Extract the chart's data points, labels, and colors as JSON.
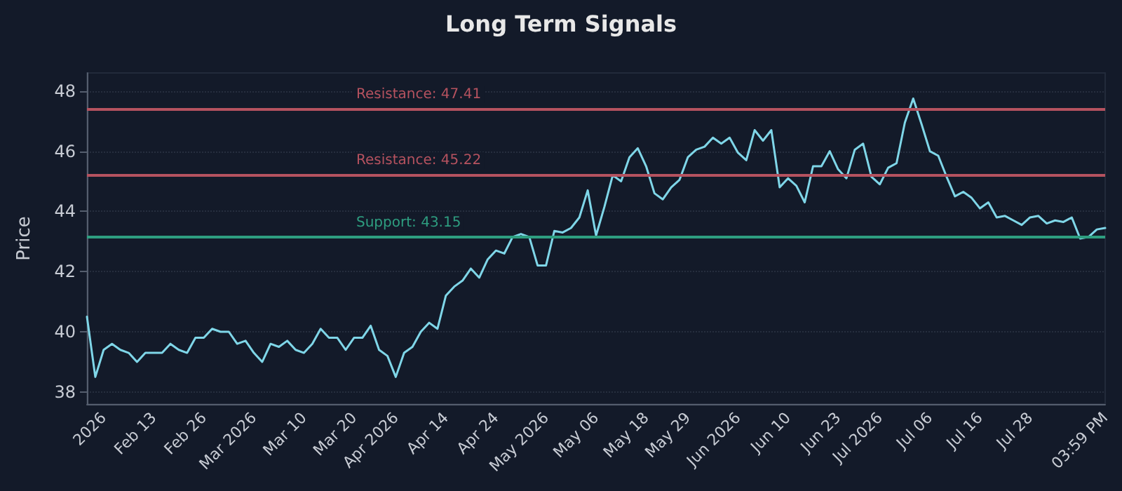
{
  "chart_data": {
    "type": "line",
    "title": "Long Term Signals",
    "ylabel": "Price",
    "categories": [
      null,
      null,
      "2026",
      null,
      null,
      null,
      null,
      null,
      "Feb 13",
      null,
      null,
      null,
      null,
      null,
      "Feb 26",
      null,
      null,
      null,
      null,
      null,
      "Mar 2026",
      null,
      null,
      null,
      null,
      null,
      "Mar 10",
      null,
      null,
      null,
      null,
      null,
      "Mar 20",
      null,
      null,
      null,
      null,
      "Apr 2026",
      null,
      null,
      null,
      null,
      null,
      "Apr 14",
      null,
      null,
      null,
      null,
      null,
      "Apr 24",
      null,
      null,
      null,
      null,
      null,
      "May 2026",
      null,
      null,
      null,
      null,
      null,
      "May 06",
      null,
      null,
      null,
      null,
      null,
      "May 18",
      null,
      null,
      null,
      null,
      "May 29",
      null,
      null,
      null,
      null,
      null,
      "Jun 2026",
      null,
      null,
      null,
      null,
      null,
      "Jun 10",
      null,
      null,
      null,
      null,
      null,
      "Jun 23",
      null,
      null,
      null,
      null,
      "Jul 2026",
      null,
      null,
      null,
      null,
      null,
      "Jul 06",
      null,
      null,
      null,
      null,
      null,
      "Jul 16",
      null,
      null,
      null,
      null,
      null,
      "Jul 28",
      null,
      null,
      null,
      null,
      null,
      null,
      null,
      null,
      "03:59 PM"
    ],
    "series": [
      {
        "color": "#7fd6e8",
        "values": [
          40.5,
          38.5,
          39.4,
          39.6,
          39.4,
          39.3,
          39.0,
          39.3,
          39.3,
          39.3,
          39.6,
          39.4,
          39.3,
          39.8,
          39.8,
          40.1,
          40.0,
          40.0,
          39.6,
          39.7,
          39.3,
          39.0,
          39.6,
          39.5,
          39.7,
          39.4,
          39.3,
          39.6,
          40.1,
          39.8,
          39.8,
          39.4,
          39.8,
          39.8,
          40.2,
          39.4,
          39.2,
          38.5,
          39.3,
          39.5,
          40.0,
          40.3,
          40.1,
          41.2,
          41.5,
          41.7,
          42.1,
          41.8,
          42.4,
          42.7,
          42.6,
          43.15,
          43.25,
          43.15,
          42.2,
          42.2,
          43.35,
          43.3,
          43.45,
          43.8,
          44.7,
          43.2,
          44.15,
          45.2,
          45.0,
          45.8,
          46.1,
          45.5,
          44.6,
          44.4,
          44.8,
          45.05,
          45.8,
          46.05,
          46.15,
          46.45,
          46.25,
          46.45,
          45.95,
          45.7,
          46.7,
          46.35,
          46.7,
          44.8,
          45.1,
          44.85,
          44.3,
          45.5,
          45.5,
          46.0,
          45.4,
          45.1,
          46.05,
          46.25,
          45.15,
          44.9,
          45.45,
          45.6,
          46.95,
          47.75,
          46.9,
          46.0,
          45.85,
          45.15,
          44.5,
          44.65,
          44.45,
          44.1,
          44.3,
          43.8,
          43.85,
          43.7,
          43.55,
          43.8,
          43.85,
          43.6,
          43.7,
          43.65,
          43.8,
          43.1,
          43.15,
          43.4,
          43.45
        ]
      }
    ],
    "ylim": [
      37.6,
      48.6
    ],
    "yticks": [
      38,
      40,
      42,
      44,
      46,
      48
    ],
    "grid": "y",
    "marker": "none",
    "line_style": "solid",
    "ref_lines": [
      {
        "axis": "y",
        "value": 47.41,
        "label": "Resistance: 47.41",
        "color": "#b5525f"
      },
      {
        "axis": "y",
        "value": 45.22,
        "label": "Resistance: 45.22",
        "color": "#b5525f"
      },
      {
        "axis": "y",
        "value": 43.15,
        "label": "Support: 43.15",
        "color": "#2e9e80"
      }
    ]
  }
}
